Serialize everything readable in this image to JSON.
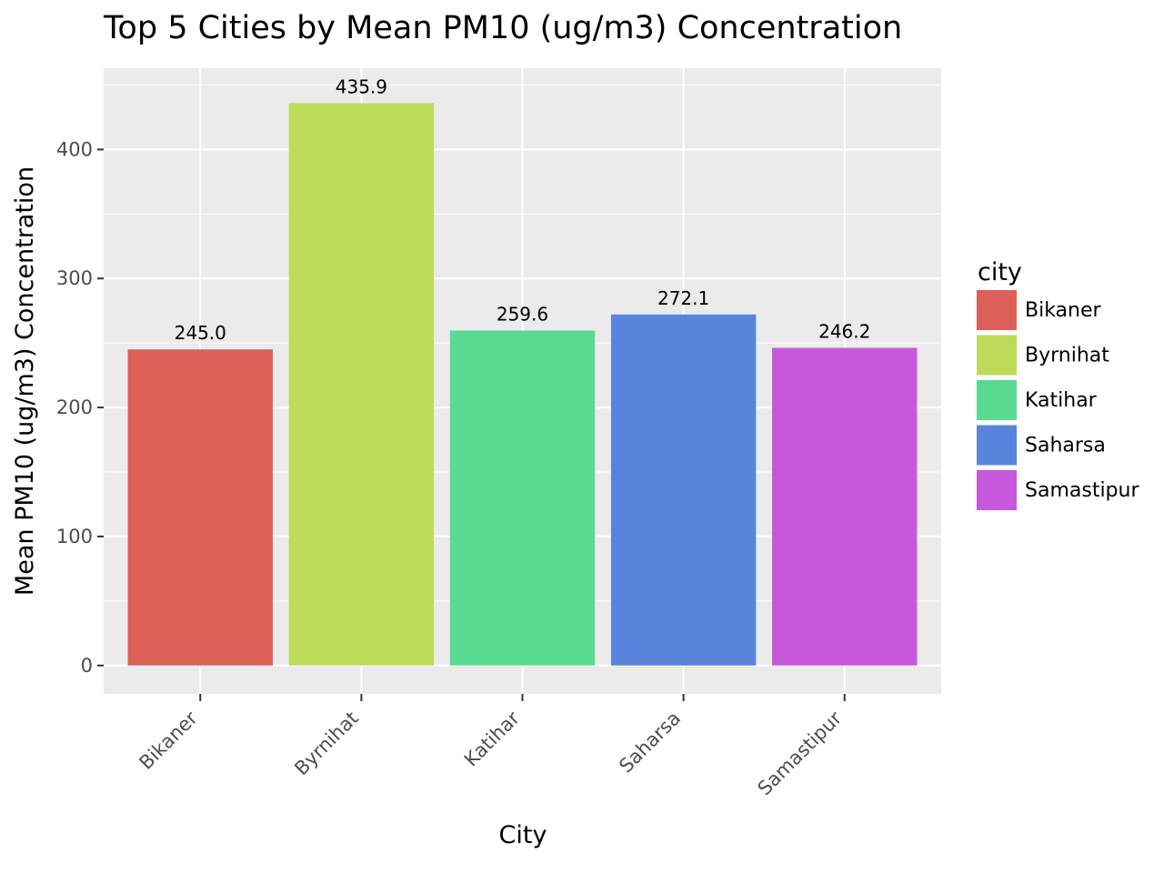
{
  "chart_data": {
    "type": "bar",
    "title": "Top 5 Cities by Mean PM10 (ug/m3) Concentration",
    "xlabel": "City",
    "ylabel": "Mean PM10 (ug/m3) Concentration",
    "categories": [
      "Bikaner",
      "Byrnihat",
      "Katihar",
      "Saharsa",
      "Samastipur"
    ],
    "values": [
      245.0,
      435.9,
      259.6,
      272.1,
      246.2
    ],
    "data_labels": [
      "245.0",
      "435.9",
      "259.6",
      "272.1",
      "246.2"
    ],
    "colors": [
      "#DB6058",
      "#BCDB58",
      "#58DB91",
      "#5884DB",
      "#C758DB"
    ],
    "ylim": [
      -22,
      463
    ],
    "yticks": [
      0,
      100,
      200,
      300,
      400
    ],
    "grid": true,
    "background": "#EBEBEB",
    "legend": {
      "title": "city",
      "position": "right",
      "entries": [
        "Bikaner",
        "Byrnihat",
        "Katihar",
        "Saharsa",
        "Samastipur"
      ]
    }
  }
}
